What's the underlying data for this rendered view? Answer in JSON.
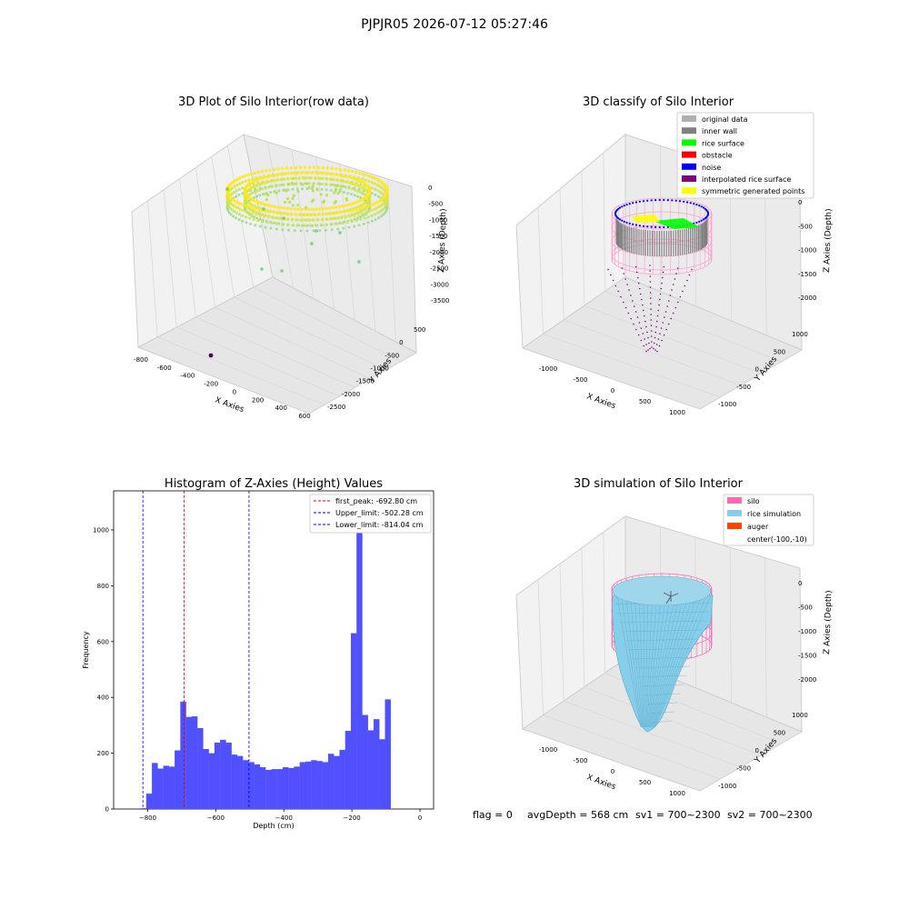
{
  "suptitle": "PJPJR05 2026-07-12 05:27:46",
  "footer": {
    "flag": "flag = 0",
    "avg_depth": "avgDepth = 568 cm",
    "sv1": "sv1 = 700~2300",
    "sv2": "sv2 = 700~2300"
  },
  "colors": {
    "histogram_bar": "#5050ff",
    "first_peak": "#e00000",
    "limits": "#0000e0",
    "silo": "#ff69b4",
    "rice_simulation": "#87ceeb",
    "auger": "#ff4500",
    "viridis_high": "#fde725",
    "viridis_mid": "#5ec962",
    "viridis_low": "#440154"
  },
  "chart_data": [
    {
      "id": "panel1",
      "type": "scatter",
      "projection": "3d",
      "title": "3D Plot of Silo Interior(row data)",
      "xlabel": "X Axies",
      "ylabel": "Y Axies",
      "zlabel": "Z Axies (Depth)",
      "xticks": [
        "-800",
        "-600",
        "-400",
        "-200",
        "0",
        "200",
        "400",
        "600"
      ],
      "yticks": [
        "500",
        "0",
        "-500",
        "-1000",
        "-1500",
        "-2000",
        "-2500"
      ],
      "zticks": [
        "0",
        "-500",
        "-1000",
        "-1500",
        "-2000",
        "-2500",
        "-3000",
        "-3500"
      ],
      "colormap": "viridis",
      "description_points": "ring of points near depth 0 to -900, few outliers down to about -3000"
    },
    {
      "id": "panel2",
      "type": "scatter",
      "projection": "3d",
      "title": "3D classify of Silo Interior",
      "xlabel": "X Axies",
      "ylabel": "Y Axies",
      "zlabel": "Z Axies (Depth)",
      "xticks": [
        "-1000",
        "-500",
        "0",
        "500",
        "1000"
      ],
      "yticks": [
        "1000",
        "500",
        "0",
        "-500",
        "-1000"
      ],
      "zticks": [
        "0",
        "-500",
        "-1000",
        "-1500",
        "-2000"
      ],
      "legend_position": "top-right",
      "legend": [
        {
          "label": "original data",
          "color": "#b0b0b0"
        },
        {
          "label": "inner wall",
          "color": "#808080"
        },
        {
          "label": "rice surface",
          "color": "#00ff00"
        },
        {
          "label": "obstacle",
          "color": "#ff0000"
        },
        {
          "label": "noise",
          "color": "#0000ff"
        },
        {
          "label": "interpolated rice surface",
          "color": "#800080"
        },
        {
          "label": "symmetric generated points",
          "color": "#ffff00"
        }
      ]
    },
    {
      "id": "panel3",
      "type": "bar",
      "title": "Histogram of Z-Axies (Height) Values",
      "xlabel": "Depth (cm)",
      "ylabel": "Frequency",
      "xlim": [
        -900,
        40
      ],
      "ylim": [
        0,
        1140
      ],
      "xticks": [
        -800,
        -600,
        -400,
        -200,
        0
      ],
      "yticks": [
        0,
        200,
        400,
        600,
        800,
        1000
      ],
      "bin_width": 16.7,
      "bin_start": -821,
      "values": [
        3,
        55,
        165,
        145,
        155,
        152,
        210,
        385,
        330,
        332,
        290,
        215,
        200,
        238,
        248,
        238,
        195,
        190,
        175,
        168,
        160,
        150,
        140,
        143,
        143,
        150,
        147,
        152,
        168,
        170,
        175,
        172,
        168,
        198,
        190,
        212,
        280,
        630,
        1085,
        337,
        282,
        322,
        250,
        393
      ],
      "vlines": [
        {
          "x": -692.8,
          "style": "dashed",
          "color": "#e00000"
        },
        {
          "x": -502.28,
          "style": "dashed",
          "color": "#0000e0"
        },
        {
          "x": -814.04,
          "style": "dashed",
          "color": "#0000e0"
        }
      ],
      "legend_position": "top-right",
      "legend": [
        {
          "label": "first_peak: -692.80 cm",
          "color": "#e00000"
        },
        {
          "label": "Upper_limit: -502.28 cm",
          "color": "#0000e0"
        },
        {
          "label": "Lower_limit: -814.04 cm",
          "color": "#0000e0"
        }
      ]
    },
    {
      "id": "panel4",
      "type": "surface",
      "projection": "3d",
      "title": "3D simulation of Silo Interior",
      "xlabel": "X Axies",
      "ylabel": "Y Axies",
      "zlabel": "Z Axies (Depth)",
      "xticks": [
        "-1000",
        "-500",
        "0",
        "500",
        "1000"
      ],
      "yticks": [
        "1000",
        "500",
        "0",
        "-500",
        "-1000"
      ],
      "zticks": [
        "0",
        "-500",
        "-1000",
        "-1500",
        "-2000"
      ],
      "legend_position": "top-right",
      "legend": [
        {
          "label": "silo",
          "color": "#ff69b4"
        },
        {
          "label": "rice simulation",
          "color": "#87ceeb"
        },
        {
          "label": "auger",
          "color": "#ff4500"
        },
        {
          "label": "center(-100,-10)",
          "color": null
        }
      ]
    }
  ]
}
